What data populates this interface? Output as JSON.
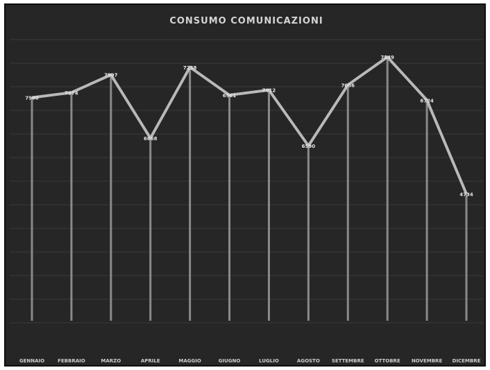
{
  "chart_data": {
    "type": "line",
    "title": "CONSUMO COMUNICAZIONI",
    "categories": [
      "GENNAIO",
      "FEBBRAIO",
      "MARZO",
      "APRILE",
      "MAGGIO",
      "GIUGNO",
      "LUGLIO",
      "AGOSTO",
      "SETTEMBRE",
      "OTTOBRE",
      "NOVEMBRE",
      "DICEMBRE"
    ],
    "values": [
      0.88,
      0.9,
      0.97,
      0.72,
      1.0,
      0.89,
      0.91,
      0.69,
      0.93,
      1.04,
      0.87,
      0.5
    ],
    "value_labels": [
      "7960",
      "7974",
      "7997",
      "6668",
      "7238",
      "6961",
      "7012",
      "6590",
      "7056",
      "7549",
      "6724",
      "4734"
    ],
    "xlabel": "",
    "ylabel": "",
    "ylim": [
      0,
      1.15
    ],
    "grid": true,
    "legend": "none",
    "colors": {
      "background": "#262626",
      "line": "#b9b9b9",
      "stem": "#8a8a8a",
      "text": "#d4d4d4"
    }
  }
}
